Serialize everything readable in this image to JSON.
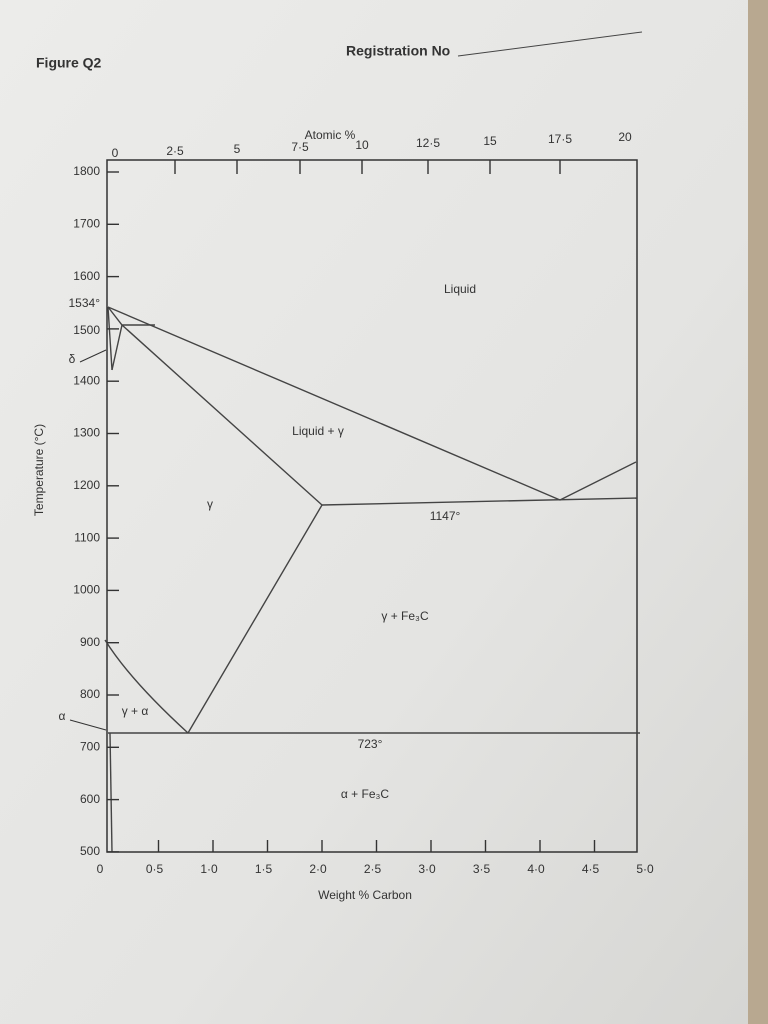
{
  "header": {
    "figure": "Figure Q2",
    "registration": "Registration No"
  },
  "diagram": {
    "top_axis": {
      "label": "Atomic %",
      "ticks": [
        "0",
        "2·5",
        "5",
        "7·5",
        "10",
        "12·5",
        "15",
        "17·5",
        "20"
      ]
    },
    "left_axis": {
      "label": "Temperature (°C)",
      "ticks": [
        "1800",
        "1700",
        "1600",
        "1500",
        "1400",
        "1300",
        "1200",
        "1100",
        "1000",
        "900",
        "800",
        "700",
        "600",
        "500"
      ],
      "melting_point": "1534°"
    },
    "bottom_axis": {
      "label": "Weight % Carbon",
      "ticks": [
        "0",
        "0·5",
        "1·0",
        "1·5",
        "2·0",
        "2·5",
        "3·0",
        "3·5",
        "4·0",
        "4·5",
        "5·0"
      ]
    },
    "regions": {
      "liquid": "Liquid",
      "liquid_gamma": "Liquid + γ",
      "gamma": "γ",
      "eutectic": "1147°",
      "gamma_fe3c": "γ + Fe₃C",
      "gamma_alpha": "γ + α",
      "eutectoid": "723°",
      "alpha_fe3c": "α + Fe₃C",
      "delta": "δ",
      "alpha": "α"
    }
  }
}
